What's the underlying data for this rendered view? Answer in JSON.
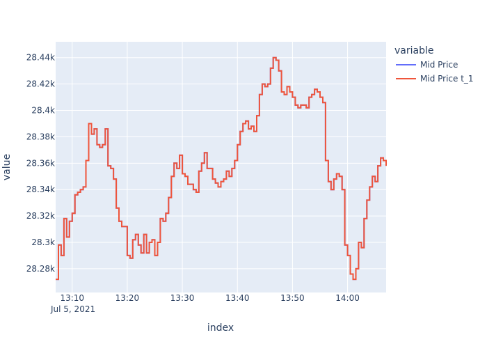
{
  "chart_data": {
    "type": "line",
    "xlabel": "index",
    "ylabel": "value",
    "date_label": "Jul 5, 2021",
    "x_range": [
      "13:07",
      "14:07"
    ],
    "ylim": [
      28262,
      28452
    ],
    "x_ticks": [
      "13:10",
      "13:20",
      "13:30",
      "13:40",
      "13:50",
      "14:00"
    ],
    "y_ticks": [
      {
        "value": 28280,
        "label": "28.28k"
      },
      {
        "value": 28300,
        "label": "28.3k"
      },
      {
        "value": 28320,
        "label": "28.32k"
      },
      {
        "value": 28340,
        "label": "28.34k"
      },
      {
        "value": 28360,
        "label": "28.36k"
      },
      {
        "value": 28380,
        "label": "28.38k"
      },
      {
        "value": 28400,
        "label": "28.4k"
      },
      {
        "value": 28420,
        "label": "28.42k"
      },
      {
        "value": 28440,
        "label": "28.44k"
      }
    ],
    "grid": true,
    "legend": {
      "title": "variable",
      "placement": "top-right",
      "entries": [
        {
          "name": "Mid Price",
          "color": "#636efa"
        },
        {
          "name": "Mid Price t_1",
          "color": "#ef553b"
        }
      ]
    },
    "series": [
      {
        "name": "Mid Price",
        "color": "#636efa",
        "x": [
          "13:07",
          "13:07:30",
          "13:08",
          "13:08:30",
          "13:09",
          "13:09:30",
          "13:10",
          "13:10:30",
          "13:11",
          "13:11:30",
          "13:12",
          "13:12:30",
          "13:13",
          "13:13:30",
          "13:14",
          "13:14:30",
          "13:15",
          "13:15:30",
          "13:16",
          "13:16:30",
          "13:17",
          "13:17:30",
          "13:18",
          "13:18:30",
          "13:19",
          "13:19:30",
          "13:20",
          "13:20:30",
          "13:21",
          "13:21:30",
          "13:22",
          "13:22:30",
          "13:23",
          "13:23:30",
          "13:24",
          "13:24:30",
          "13:25",
          "13:25:30",
          "13:26",
          "13:26:30",
          "13:27",
          "13:27:30",
          "13:28",
          "13:28:30",
          "13:29",
          "13:29:30",
          "13:30",
          "13:30:30",
          "13:31",
          "13:31:30",
          "13:32",
          "13:32:30",
          "13:33",
          "13:33:30",
          "13:34",
          "13:34:30",
          "13:35",
          "13:35:30",
          "13:36",
          "13:36:30",
          "13:37",
          "13:37:30",
          "13:38",
          "13:38:30",
          "13:39",
          "13:39:30",
          "13:40",
          "13:40:30",
          "13:41",
          "13:41:30",
          "13:42",
          "13:42:30",
          "13:43",
          "13:43:30",
          "13:44",
          "13:44:30",
          "13:45",
          "13:45:30",
          "13:46",
          "13:46:30",
          "13:47",
          "13:47:30",
          "13:48",
          "13:48:30",
          "13:49",
          "13:49:30",
          "13:50",
          "13:50:30",
          "13:51",
          "13:51:30",
          "13:52",
          "13:52:30",
          "13:53",
          "13:53:30",
          "13:54",
          "13:54:30",
          "13:55",
          "13:55:30",
          "13:56",
          "13:56:30",
          "13:57",
          "13:57:30",
          "13:58",
          "13:58:30",
          "13:59",
          "13:59:30",
          "14:00",
          "14:00:30",
          "14:01",
          "14:01:30",
          "14:02",
          "14:02:30",
          "14:03",
          "14:03:30",
          "14:04",
          "14:04:30",
          "14:05",
          "14:05:30",
          "14:06",
          "14:06:30",
          "14:07"
        ],
        "values": [
          28272,
          28298,
          28290,
          28318,
          28304,
          28316,
          28322,
          28336,
          28338,
          28340,
          28342,
          28362,
          28390,
          28382,
          28386,
          28374,
          28372,
          28374,
          28386,
          28358,
          28356,
          28348,
          28326,
          28316,
          28312,
          28312,
          28290,
          28288,
          28302,
          28306,
          28298,
          28292,
          28306,
          28292,
          28300,
          28302,
          28290,
          28300,
          28318,
          28316,
          28322,
          28334,
          28350,
          28360,
          28356,
          28366,
          28352,
          28350,
          28344,
          28344,
          28340,
          28338,
          28354,
          28360,
          28368,
          28356,
          28356,
          28348,
          28345,
          28342,
          28346,
          28348,
          28354,
          28350,
          28356,
          28362,
          28374,
          28384,
          28390,
          28392,
          28386,
          28388,
          28384,
          28396,
          28412,
          28420,
          28418,
          28420,
          28432,
          28440,
          28438,
          28430,
          28414,
          28412,
          28418,
          28414,
          28410,
          28404,
          28402,
          28404,
          28404,
          28402,
          28410,
          28412,
          28416,
          28414,
          28410,
          28406,
          28362,
          28346,
          28340,
          28348,
          28352,
          28350,
          28340,
          28298,
          28290,
          28276,
          28272,
          28280,
          28300,
          28296,
          28318,
          28332,
          28342,
          28350,
          28346,
          28358,
          28364,
          28362,
          28358
        ]
      },
      {
        "name": "Mid Price t_1",
        "color": "#ef553b",
        "x": [
          "13:07",
          "13:07:30",
          "13:08",
          "13:08:30",
          "13:09",
          "13:09:30",
          "13:10",
          "13:10:30",
          "13:11",
          "13:11:30",
          "13:12",
          "13:12:30",
          "13:13",
          "13:13:30",
          "13:14",
          "13:14:30",
          "13:15",
          "13:15:30",
          "13:16",
          "13:16:30",
          "13:17",
          "13:17:30",
          "13:18",
          "13:18:30",
          "13:19",
          "13:19:30",
          "13:20",
          "13:20:30",
          "13:21",
          "13:21:30",
          "13:22",
          "13:22:30",
          "13:23",
          "13:23:30",
          "13:24",
          "13:24:30",
          "13:25",
          "13:25:30",
          "13:26",
          "13:26:30",
          "13:27",
          "13:27:30",
          "13:28",
          "13:28:30",
          "13:29",
          "13:29:30",
          "13:30",
          "13:30:30",
          "13:31",
          "13:31:30",
          "13:32",
          "13:32:30",
          "13:33",
          "13:33:30",
          "13:34",
          "13:34:30",
          "13:35",
          "13:35:30",
          "13:36",
          "13:36:30",
          "13:37",
          "13:37:30",
          "13:38",
          "13:38:30",
          "13:39",
          "13:39:30",
          "13:40",
          "13:40:30",
          "13:41",
          "13:41:30",
          "13:42",
          "13:42:30",
          "13:43",
          "13:43:30",
          "13:44",
          "13:44:30",
          "13:45",
          "13:45:30",
          "13:46",
          "13:46:30",
          "13:47",
          "13:47:30",
          "13:48",
          "13:48:30",
          "13:49",
          "13:49:30",
          "13:50",
          "13:50:30",
          "13:51",
          "13:51:30",
          "13:52",
          "13:52:30",
          "13:53",
          "13:53:30",
          "13:54",
          "13:54:30",
          "13:55",
          "13:55:30",
          "13:56",
          "13:56:30",
          "13:57",
          "13:57:30",
          "13:58",
          "13:58:30",
          "13:59",
          "13:59:30",
          "14:00",
          "14:00:30",
          "14:01",
          "14:01:30",
          "14:02",
          "14:02:30",
          "14:03",
          "14:03:30",
          "14:04",
          "14:04:30",
          "14:05",
          "14:05:30",
          "14:06",
          "14:06:30",
          "14:07"
        ],
        "values": [
          28272,
          28298,
          28290,
          28318,
          28304,
          28316,
          28322,
          28336,
          28338,
          28340,
          28342,
          28362,
          28390,
          28382,
          28386,
          28374,
          28372,
          28374,
          28386,
          28358,
          28356,
          28348,
          28326,
          28316,
          28312,
          28312,
          28290,
          28288,
          28302,
          28306,
          28298,
          28292,
          28306,
          28292,
          28300,
          28302,
          28290,
          28300,
          28318,
          28316,
          28322,
          28334,
          28350,
          28360,
          28356,
          28366,
          28352,
          28350,
          28344,
          28344,
          28340,
          28338,
          28354,
          28360,
          28368,
          28356,
          28356,
          28348,
          28345,
          28342,
          28346,
          28348,
          28354,
          28350,
          28356,
          28362,
          28374,
          28384,
          28390,
          28392,
          28386,
          28388,
          28384,
          28396,
          28412,
          28420,
          28418,
          28420,
          28432,
          28440,
          28438,
          28430,
          28414,
          28412,
          28418,
          28414,
          28410,
          28404,
          28402,
          28404,
          28404,
          28402,
          28410,
          28412,
          28416,
          28414,
          28410,
          28406,
          28362,
          28346,
          28340,
          28348,
          28352,
          28350,
          28340,
          28298,
          28290,
          28276,
          28272,
          28280,
          28300,
          28296,
          28318,
          28332,
          28342,
          28350,
          28346,
          28358,
          28364,
          28362,
          28358
        ]
      }
    ]
  }
}
